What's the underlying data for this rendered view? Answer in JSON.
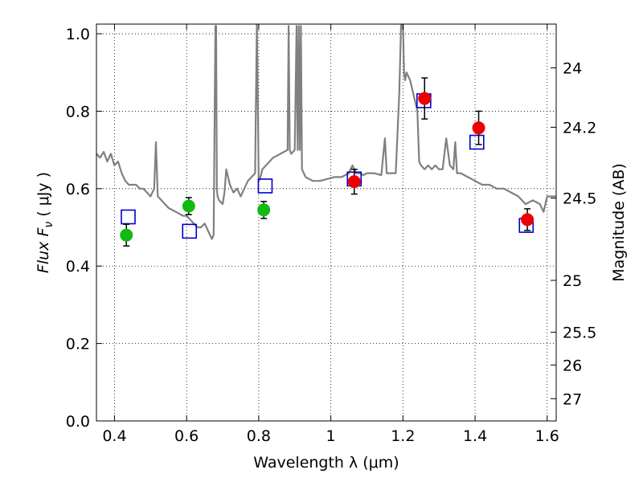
{
  "chart_data": {
    "type": "scatter",
    "xlabel": "Wavelength  λ (μm)",
    "ylabel": "Flux  F",
    "ylabel_sub": "ν",
    "ylabel_unit": "  ( μJy )",
    "y2label": "Magnitude (AB)",
    "xlim": [
      0.35,
      1.625
    ],
    "ylim": [
      0.0,
      1.025
    ],
    "grid": true,
    "x_ticks": [
      0.4,
      0.6,
      0.8,
      1.0,
      1.2,
      1.4,
      1.6
    ],
    "x_tick_labels": [
      "0.4",
      "0.6",
      "0.8",
      "1",
      "1.2",
      "1.4",
      "1.6"
    ],
    "y_ticks": [
      0.0,
      0.2,
      0.4,
      0.6,
      0.8,
      1.0
    ],
    "y_tick_labels": [
      "0.0",
      "0.2",
      "0.4",
      "0.6",
      "0.8",
      "1.0"
    ],
    "y2_ticks": [
      24,
      24.2,
      24.5,
      25,
      25.5,
      26,
      27
    ],
    "y2_tick_labels": [
      "24",
      "24.2",
      "24.5",
      "25",
      "25.5",
      "26",
      "27"
    ],
    "colors": {
      "spectrum": "#808080",
      "green_points": "#11bb11",
      "red_points": "#ee0000",
      "model_squares": "#0000cc",
      "errorbars": "#000000"
    },
    "spectrum": {
      "name": "",
      "x": [
        0.35,
        0.36,
        0.37,
        0.38,
        0.39,
        0.4,
        0.41,
        0.42,
        0.43,
        0.44,
        0.45,
        0.46,
        0.47,
        0.48,
        0.49,
        0.5,
        0.51,
        0.515,
        0.52,
        0.53,
        0.55,
        0.57,
        0.59,
        0.6,
        0.61,
        0.62,
        0.63,
        0.64,
        0.65,
        0.66,
        0.67,
        0.675,
        0.68,
        0.682,
        0.684,
        0.686,
        0.69,
        0.7,
        0.705,
        0.71,
        0.72,
        0.73,
        0.74,
        0.75,
        0.76,
        0.77,
        0.78,
        0.79,
        0.795,
        0.8,
        0.805,
        0.81,
        0.82,
        0.84,
        0.86,
        0.88,
        0.883,
        0.886,
        0.89,
        0.9,
        0.905,
        0.908,
        0.911,
        0.914,
        0.917,
        0.92,
        0.93,
        0.95,
        0.97,
        0.99,
        1.01,
        1.03,
        1.05,
        1.06,
        1.07,
        1.08,
        1.09,
        1.1,
        1.12,
        1.14,
        1.15,
        1.155,
        1.16,
        1.18,
        1.19,
        1.195,
        1.2,
        1.203,
        1.206,
        1.21,
        1.22,
        1.24,
        1.245,
        1.25,
        1.26,
        1.27,
        1.28,
        1.29,
        1.3,
        1.31,
        1.32,
        1.33,
        1.34,
        1.345,
        1.35,
        1.36,
        1.38,
        1.4,
        1.42,
        1.44,
        1.46,
        1.48,
        1.5,
        1.52,
        1.54,
        1.56,
        1.58,
        1.59,
        1.6,
        1.61,
        1.625
      ],
      "y": [
        0.69,
        0.68,
        0.695,
        0.67,
        0.69,
        0.66,
        0.67,
        0.64,
        0.62,
        0.61,
        0.61,
        0.61,
        0.6,
        0.6,
        0.59,
        0.58,
        0.6,
        0.72,
        0.58,
        0.57,
        0.55,
        0.54,
        0.53,
        0.53,
        0.52,
        0.51,
        0.5,
        0.5,
        0.51,
        0.49,
        0.47,
        0.48,
        1.02,
        1.02,
        0.6,
        0.58,
        0.57,
        0.56,
        0.59,
        0.65,
        0.61,
        0.59,
        0.6,
        0.58,
        0.6,
        0.62,
        0.63,
        0.64,
        1.03,
        0.62,
        0.63,
        0.65,
        0.66,
        0.68,
        0.69,
        0.7,
        1.02,
        0.7,
        0.69,
        0.7,
        1.02,
        0.7,
        1.02,
        0.7,
        1.02,
        0.65,
        0.63,
        0.62,
        0.62,
        0.625,
        0.63,
        0.63,
        0.64,
        0.66,
        0.64,
        0.64,
        0.635,
        0.64,
        0.64,
        0.635,
        0.73,
        0.64,
        0.64,
        0.64,
        0.85,
        1.03,
        1.03,
        0.9,
        0.88,
        0.9,
        0.88,
        0.8,
        0.67,
        0.66,
        0.65,
        0.66,
        0.65,
        0.66,
        0.65,
        0.65,
        0.73,
        0.66,
        0.65,
        0.72,
        0.64,
        0.64,
        0.63,
        0.62,
        0.61,
        0.61,
        0.6,
        0.6,
        0.59,
        0.58,
        0.56,
        0.57,
        0.56,
        0.54,
        0.58,
        0.58,
        0.58
      ]
    },
    "green_points": {
      "name": "",
      "x": [
        0.433,
        0.606,
        0.814
      ],
      "y": [
        0.48,
        0.555,
        0.545
      ],
      "err": [
        0.028,
        0.022,
        0.022
      ]
    },
    "red_points": {
      "name": "",
      "x": [
        1.065,
        1.26,
        1.41,
        1.545
      ],
      "y": [
        0.618,
        0.833,
        0.757,
        0.52
      ],
      "err": [
        0.032,
        0.053,
        0.043,
        0.028
      ]
    },
    "model_squares": {
      "name": "",
      "x": [
        0.438,
        0.608,
        0.818,
        1.065,
        1.258,
        1.405,
        1.542
      ],
      "y": [
        0.527,
        0.49,
        0.607,
        0.625,
        0.827,
        0.72,
        0.505
      ]
    }
  }
}
